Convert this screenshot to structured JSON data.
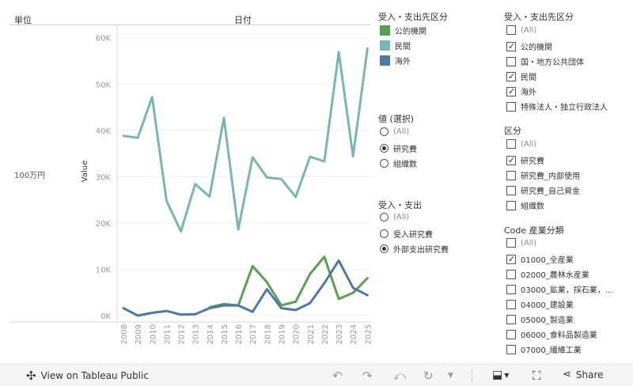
{
  "header": {
    "unit_label": "単位",
    "date_label": "日付",
    "unit_value": "100万円",
    "yaxis_label": "Value"
  },
  "chart_data": {
    "type": "line",
    "x": [
      "2008",
      "2009",
      "2010",
      "2011",
      "2012",
      "2013",
      "2014",
      "2015",
      "2016",
      "2017",
      "2018",
      "2019",
      "2020",
      "2021",
      "2022",
      "2023",
      "2024",
      "2025"
    ],
    "ylim": [
      0,
      62000
    ],
    "yticks": [
      "0K",
      "10K",
      "20K",
      "30K",
      "40K",
      "50K",
      "60K"
    ],
    "ytick_values": [
      0,
      10000,
      20000,
      30000,
      40000,
      50000,
      60000
    ],
    "series": [
      {
        "name": "民間",
        "color": "#76b7b2",
        "values": [
          38800,
          38400,
          47200,
          24800,
          18200,
          28400,
          25700,
          42700,
          18600,
          34200,
          29800,
          29500,
          25600,
          34300,
          33300,
          56900,
          34400,
          57700
        ]
      },
      {
        "name": "公的機関",
        "color": "#59a14f",
        "values": [
          null,
          null,
          null,
          null,
          null,
          null,
          1800,
          2500,
          2200,
          10700,
          7200,
          2200,
          3000,
          9000,
          12700,
          3600,
          4900,
          8100
        ]
      },
      {
        "name": "海外",
        "color": "#4e79a7",
        "values": [
          1600,
          0,
          600,
          1000,
          200,
          300,
          1600,
          2200,
          2200,
          800,
          5700,
          1600,
          1200,
          2700,
          7000,
          11900,
          6000,
          4400
        ]
      }
    ]
  },
  "legend": {
    "title": "受入・支出先区分",
    "items": [
      {
        "label": "公的機関",
        "color": "#59a14f"
      },
      {
        "label": "民間",
        "color": "#76b7b2"
      },
      {
        "label": "海外",
        "color": "#4e79a7"
      }
    ]
  },
  "value_filter": {
    "title": "値 (選択)",
    "options": [
      {
        "label": "(All)",
        "selected": false,
        "muted": true
      },
      {
        "label": "研究費",
        "selected": true,
        "muted": false
      },
      {
        "label": "組織数",
        "selected": false,
        "muted": false
      }
    ]
  },
  "inout_filter": {
    "title": "受入・支出",
    "options": [
      {
        "label": "(All)",
        "selected": false,
        "muted": true
      },
      {
        "label": "受入研究費",
        "selected": false,
        "muted": false
      },
      {
        "label": "外部支出研究費",
        "selected": true,
        "muted": false
      }
    ]
  },
  "dest_filter": {
    "title": "受入・支出先区分",
    "options": [
      {
        "label": "(All)",
        "checked": false,
        "muted": true
      },
      {
        "label": "公的機関",
        "checked": true,
        "muted": false
      },
      {
        "label": "国・地方公共団体",
        "checked": false,
        "muted": false
      },
      {
        "label": "民間",
        "checked": true,
        "muted": false
      },
      {
        "label": "海外",
        "checked": true,
        "muted": false
      },
      {
        "label": "特殊法人・独立行政法人",
        "checked": false,
        "muted": false
      }
    ]
  },
  "kubun_filter": {
    "title": "区分",
    "options": [
      {
        "label": "(All)",
        "checked": false,
        "muted": true
      },
      {
        "label": "研究費",
        "checked": true,
        "muted": false
      },
      {
        "label": "研究費_内部使用",
        "checked": false,
        "muted": false
      },
      {
        "label": "研究費_自己資金",
        "checked": false,
        "muted": false
      },
      {
        "label": "組織数",
        "checked": false,
        "muted": false
      }
    ]
  },
  "industry_filter": {
    "title": "Code 産業分類",
    "options": [
      {
        "label": "(All)",
        "checked": false,
        "muted": true
      },
      {
        "label": "01000_全産業",
        "checked": true,
        "muted": false
      },
      {
        "label": "02000_農林水産業",
        "checked": false,
        "muted": false
      },
      {
        "label": "03000_鉱業，採石業，…",
        "checked": false,
        "muted": false
      },
      {
        "label": "04000_建設業",
        "checked": false,
        "muted": false
      },
      {
        "label": "05000_製造業",
        "checked": false,
        "muted": false
      },
      {
        "label": "06000_食料品製造業",
        "checked": false,
        "muted": false
      },
      {
        "label": "07000_繊維工業",
        "checked": false,
        "muted": false
      }
    ]
  },
  "toolbar": {
    "view_label": "View on Tableau Public",
    "share_label": "Share"
  }
}
